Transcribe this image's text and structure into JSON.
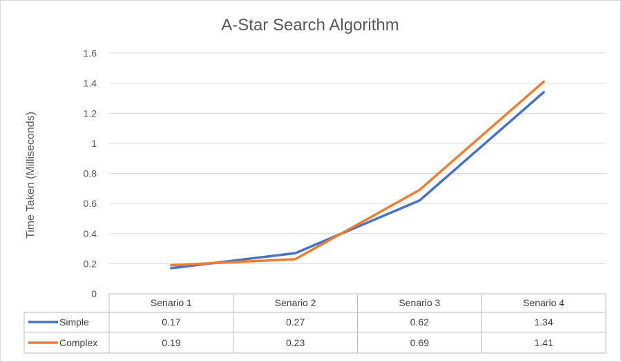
{
  "chart_data": {
    "type": "line",
    "title": "A-Star Search Algorithm",
    "xlabel": "",
    "ylabel": "Time Taken (Milliseconds)",
    "ylim": [
      0,
      1.6
    ],
    "yticks": [
      "0",
      "0.2",
      "0.4",
      "0.6",
      "0.8",
      "1",
      "1.2",
      "1.4",
      "1.6"
    ],
    "categories": [
      "Senario 1",
      "Senario 2",
      "Senario 3",
      "Senario 4"
    ],
    "series": [
      {
        "name": "Simple",
        "color": "#4472c4",
        "values": [
          0.17,
          0.27,
          0.62,
          1.34
        ],
        "labels": [
          "0.17",
          "0.27",
          "0.62",
          "1.34"
        ]
      },
      {
        "name": "Complex",
        "color": "#ed7d31",
        "values": [
          0.19,
          0.23,
          0.69,
          1.41
        ],
        "labels": [
          "0.19",
          "0.23",
          "0.69",
          "1.41"
        ]
      }
    ],
    "grid": true,
    "legend": "data-table"
  }
}
